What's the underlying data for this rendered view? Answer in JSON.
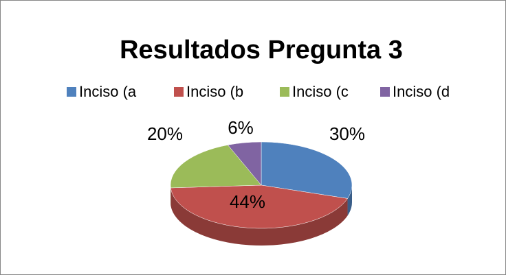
{
  "chart_data": {
    "type": "pie",
    "title": "Resultados Pregunta 3",
    "categories": [
      "Inciso (a",
      "Inciso (b",
      "Inciso (c",
      "Inciso (d"
    ],
    "values": [
      30,
      44,
      20,
      6
    ],
    "value_labels": [
      "30%",
      "44%",
      "20%",
      "6%"
    ],
    "colors": [
      "#4f81bd",
      "#c0504d",
      "#9bbb59",
      "#8064a2"
    ],
    "legend": "top",
    "three_d": true
  }
}
